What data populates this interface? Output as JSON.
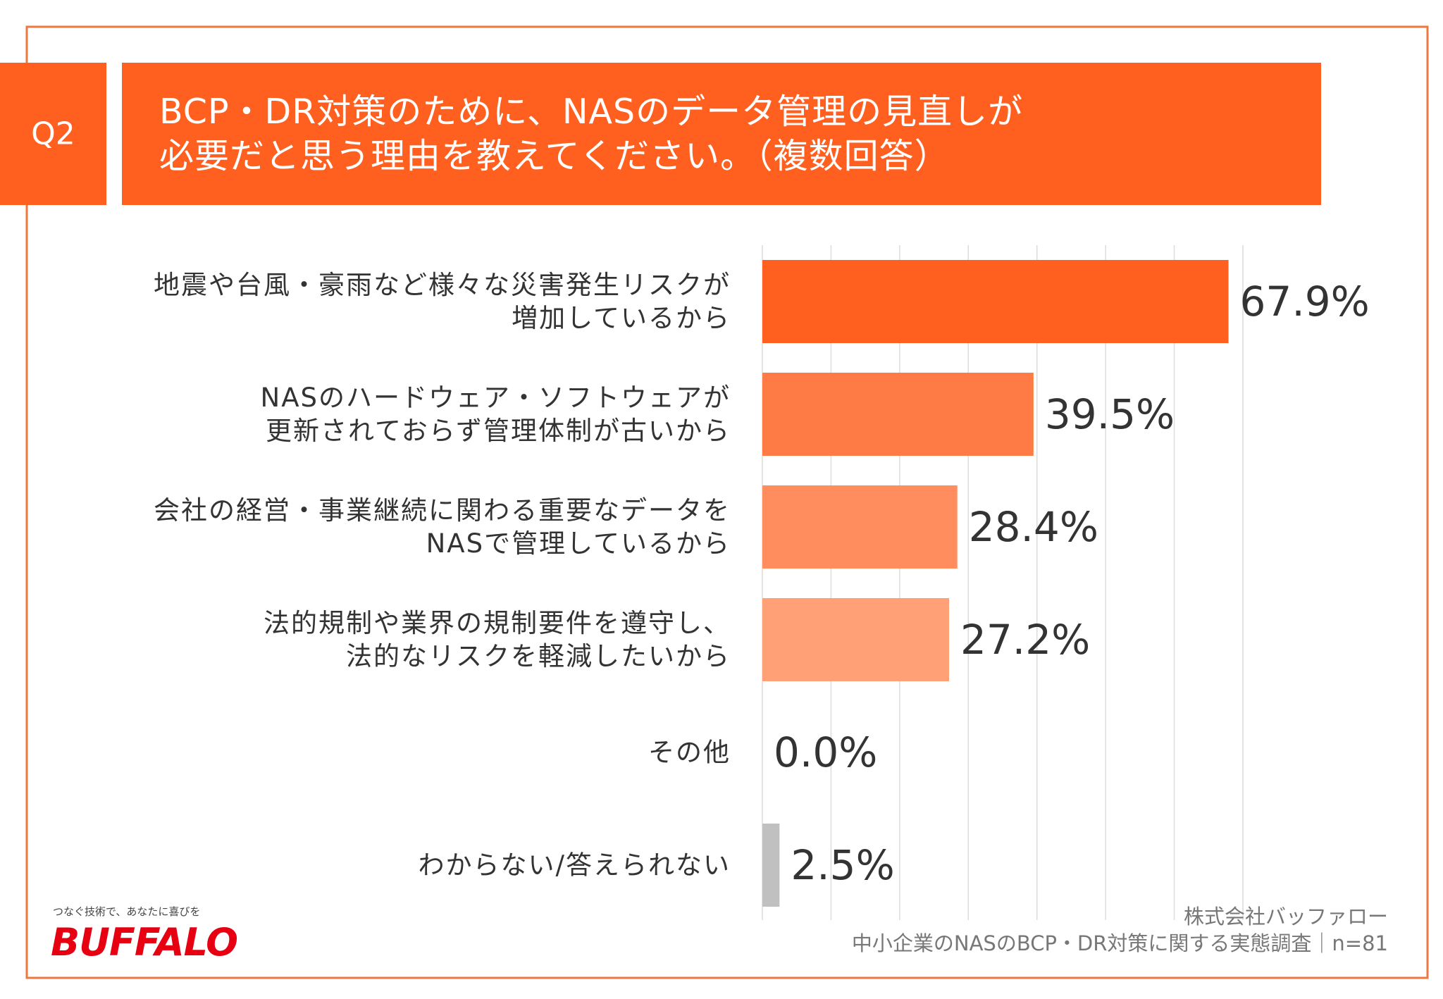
{
  "badge": "Q2",
  "title": "BCP・DR対策のために、NASのデータ管理の見直しが\n必要だと思う理由を教えてください。（複数回答）",
  "chart_data": {
    "type": "bar",
    "orientation": "horizontal",
    "categories": [
      "地震や台風・豪雨など様々な災害発生リスクが\n増加しているから",
      "NASのハードウェア・ソフトウェアが\n更新されておらず管理体制が古いから",
      "会社の経営・事業継続に関わる重要なデータを\nNASで管理しているから",
      "法的規制や業界の規制要件を遵守し、\n法的なリスクを軽減したいから",
      "その他",
      "わからない/答えられない"
    ],
    "values": [
      67.9,
      39.5,
      28.4,
      27.2,
      0.0,
      2.5
    ],
    "value_labels": [
      "67.9%",
      "39.5%",
      "28.4%",
      "27.2%",
      "0.0%",
      "2.5%"
    ],
    "colors": [
      "#ff5f1f",
      "#ff7b45",
      "#ff8d5d",
      "#ffa077",
      "#ffb090",
      "#c0c0c0"
    ],
    "xlim": [
      0,
      70
    ],
    "xticks": [
      0,
      10,
      20,
      30,
      40,
      50,
      60,
      70
    ],
    "grid": true
  },
  "source": [
    "株式会社バッファロー",
    "中小企業のNASのBCP・DR対策に関する実態調査｜n=81"
  ],
  "logo": {
    "tagline": "つなぐ技術で、あなたに喜びを",
    "name": "BUFFALO"
  }
}
